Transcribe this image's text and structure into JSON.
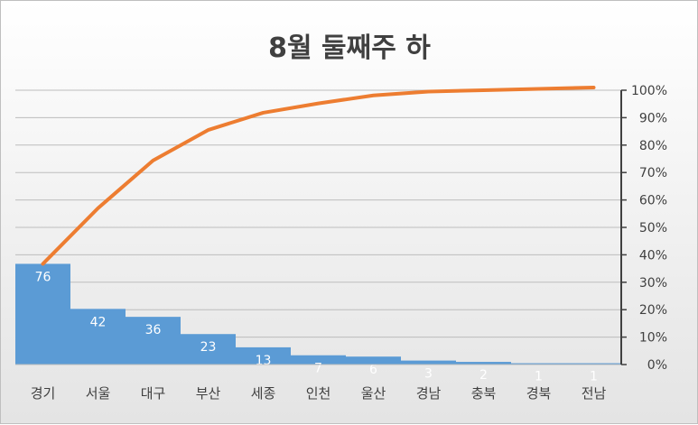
{
  "chart_data": {
    "type": "bar",
    "title": "8월 둘째주 하",
    "categories": [
      "경기",
      "서울",
      "대구",
      "부산",
      "세종",
      "인천",
      "울산",
      "경남",
      "충북",
      "경북",
      "전남"
    ],
    "series": [
      {
        "type": "bar",
        "values": [
          76,
          42,
          36,
          23,
          13,
          7,
          6,
          3,
          2,
          1,
          1
        ],
        "color": "#5b9bd5",
        "axis": "left"
      },
      {
        "type": "line",
        "values": [
          36.7,
          57.0,
          74.4,
          85.5,
          91.8,
          95.2,
          98.1,
          99.5,
          100.0,
          100.5,
          101.0
        ],
        "color": "#ed7d31",
        "axis": "right"
      }
    ],
    "y_left_range": [
      0,
      207
    ],
    "y_right_ticks": [
      "0%",
      "10%",
      "20%",
      "30%",
      "40%",
      "50%",
      "60%",
      "70%",
      "80%",
      "90%",
      "100%"
    ],
    "y_right_range": [
      0,
      100
    ],
    "data_labels": [
      "76",
      "42",
      "36",
      "23",
      "13",
      "7",
      "6",
      "3",
      "2",
      "1",
      "1"
    ],
    "grid": true,
    "legend": "none"
  }
}
